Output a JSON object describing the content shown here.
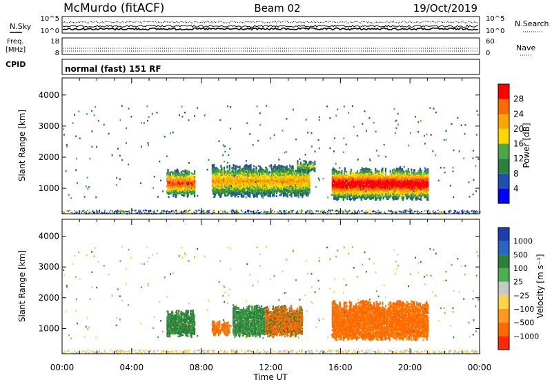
{
  "header": {
    "station": "McMurdo (fitACF)",
    "beam": "Beam 02",
    "date": "19/Oct/2019",
    "mode": "normal (fast) 151 RF"
  },
  "aux_panels": {
    "nsky_label": "N.Sky",
    "nsky_ticks": [
      "10^5",
      "10^0"
    ],
    "nsearch_label": "N.Search",
    "nsearch_ticks": [
      "10^5",
      "10^0"
    ],
    "freq_label_line1": "Freq.",
    "freq_label_line2": "[MHz]",
    "freq_ticks": [
      "18",
      "8"
    ],
    "nave_label": "Nave",
    "nave_ticks": [
      "60",
      "0"
    ],
    "cpid_label": "CPID"
  },
  "colors": {
    "power": [
      "#0000ff",
      "#1f4fb0",
      "#2f7f3c",
      "#4aa84a",
      "#ffd700",
      "#ffa500",
      "#ff6a00",
      "#ff0000"
    ],
    "velocity": [
      "#1c3fb0",
      "#2a66bf",
      "#2f7f3c",
      "#4caf50",
      "#c8c8c8",
      "#ffd24a",
      "#ff9a1a",
      "#ff6a00",
      "#ff2a00"
    ],
    "ground": "#b8b8b8"
  },
  "chart_data": [
    {
      "type": "heatmap",
      "title": "Power",
      "xlabel": "",
      "ylabel": "Slant Range [km]",
      "x_tick_labels": [
        "00:00",
        "04:00",
        "08:00",
        "12:00",
        "16:00",
        "20:00",
        "00:00"
      ],
      "xlim_hours": [
        0,
        24
      ],
      "ylim_km": [
        180,
        4550
      ],
      "y_ticks": [
        1000,
        2000,
        3000,
        4000
      ],
      "colorbar_label": "Power [dB]",
      "colorbar_ticks": [
        4,
        8,
        12,
        16,
        20,
        24,
        28
      ],
      "colorbar_range": [
        0,
        30
      ],
      "regions": [
        {
          "x_hours": [
            6.0,
            7.6
          ],
          "range_km": [
            700,
            1600
          ],
          "peak_db": 24
        },
        {
          "x_hours": [
            8.6,
            14.2
          ],
          "range_km": [
            700,
            1750
          ],
          "peak_db": 18
        },
        {
          "x_hours": [
            13.5,
            14.5
          ],
          "range_km": [
            1500,
            1900
          ],
          "peak_db": 12
        },
        {
          "x_hours": [
            15.5,
            21.0
          ],
          "range_km": [
            600,
            1650
          ],
          "peak_db": 30
        }
      ]
    },
    {
      "type": "heatmap",
      "title": "Velocity",
      "xlabel": "Time UT",
      "ylabel": "Slant Range [km]",
      "x_tick_labels": [
        "00:00",
        "04:00",
        "08:00",
        "12:00",
        "16:00",
        "20:00",
        "00:00"
      ],
      "xlim_hours": [
        0,
        24
      ],
      "ylim_km": [
        180,
        4550
      ],
      "y_ticks": [
        1000,
        2000,
        3000,
        4000
      ],
      "colorbar_label": "Velocity [m s⁻¹]",
      "colorbar_ticks": [
        "1000",
        "500",
        "100",
        "25",
        "−25",
        "−100",
        "−500",
        "−1000"
      ],
      "regions": [
        {
          "x_hours": [
            6.0,
            7.6
          ],
          "range_km": [
            700,
            1600
          ],
          "velocity_class": "100 to 500"
        },
        {
          "x_hours": [
            8.6,
            9.6
          ],
          "range_km": [
            750,
            1250
          ],
          "velocity_class": "-100 to -500"
        },
        {
          "x_hours": [
            9.8,
            13.8
          ],
          "range_km": [
            700,
            1750
          ],
          "velocity_class": "mixed 100 to 500 and -100 to -500"
        },
        {
          "x_hours": [
            15.5,
            21.0
          ],
          "range_km": [
            600,
            1900
          ],
          "velocity_class": "-100 to -500"
        }
      ]
    }
  ]
}
